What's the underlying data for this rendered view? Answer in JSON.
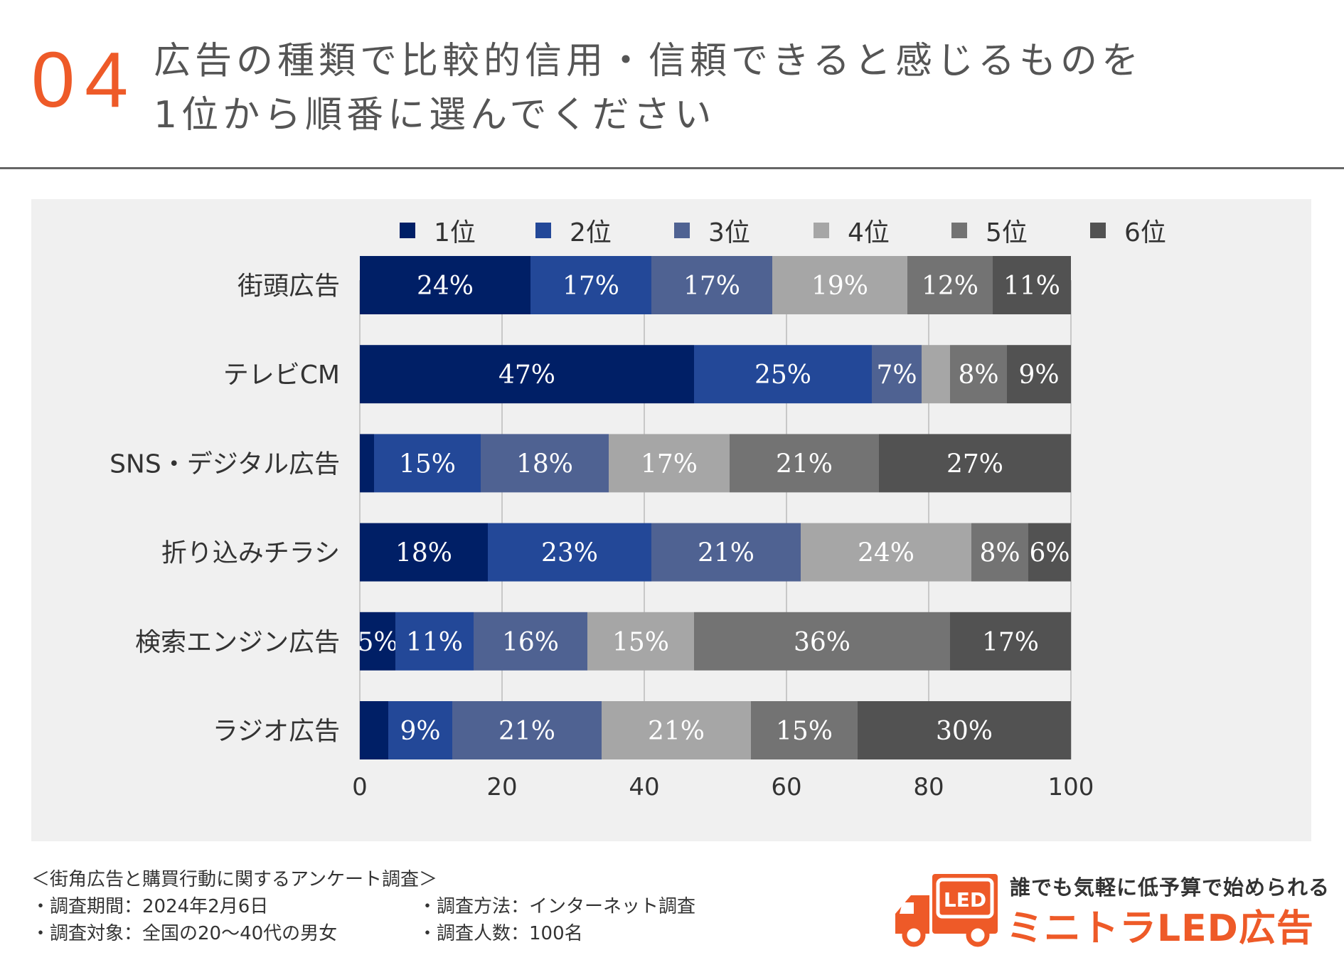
{
  "header": {
    "number": "04",
    "question_line1": "広告の種類で比較的信用・信頼できると感じるものを",
    "question_line2": "1位から順番に選んでください"
  },
  "legend": [
    {
      "label": "1位",
      "color": "#001f66"
    },
    {
      "label": "2位",
      "color": "#234898"
    },
    {
      "label": "3位",
      "color": "#4f6292"
    },
    {
      "label": "4位",
      "color": "#a6a6a6"
    },
    {
      "label": "5位",
      "color": "#737373"
    },
    {
      "label": "6位",
      "color": "#525252"
    }
  ],
  "chart_data": {
    "type": "bar",
    "orientation": "horizontal",
    "stacked": true,
    "categories": [
      "街頭広告",
      "テレビCM",
      "SNS・デジタル広告",
      "折り込みチラシ",
      "検索エンジン広告",
      "ラジオ広告"
    ],
    "series": [
      {
        "name": "1位",
        "values": [
          24,
          47,
          2,
          18,
          5,
          4
        ],
        "labels": [
          "24%",
          "47%",
          "",
          "18%",
          "5%",
          ""
        ]
      },
      {
        "name": "2位",
        "values": [
          17,
          25,
          15,
          23,
          11,
          9
        ],
        "labels": [
          "17%",
          "25%",
          "15%",
          "23%",
          "11%",
          "9%"
        ]
      },
      {
        "name": "3位",
        "values": [
          17,
          7,
          18,
          21,
          16,
          21
        ],
        "labels": [
          "17%",
          "7%",
          "18%",
          "21%",
          "16%",
          "21%"
        ]
      },
      {
        "name": "4位",
        "values": [
          19,
          4,
          17,
          24,
          15,
          21
        ],
        "labels": [
          "19%",
          "",
          "17%",
          "24%",
          "15%",
          "21%"
        ]
      },
      {
        "name": "5位",
        "values": [
          12,
          8,
          21,
          8,
          36,
          15
        ],
        "labels": [
          "12%",
          "8%",
          "21%",
          "8%",
          "36%",
          "15%"
        ]
      },
      {
        "name": "6位",
        "values": [
          11,
          9,
          27,
          6,
          17,
          30
        ],
        "labels": [
          "11%",
          "9%",
          "27%",
          "6%",
          "17%",
          "30%"
        ]
      }
    ],
    "xticks": [
      "0",
      "20",
      "40",
      "60",
      "80",
      "100"
    ],
    "xlim": [
      0,
      100
    ],
    "grid": true,
    "legend_position": "top"
  },
  "footer": {
    "survey_title": "＜街角広告と購買行動に関するアンケート調査＞",
    "period": "・調査期間：2024年2月6日",
    "method": "・調査方法：インターネット調査",
    "target": "・調査対象：全国の20〜40代の男女",
    "count": "・調査人数：100名"
  },
  "logo": {
    "badge": "LED",
    "tagline": "誰でも気軽に低予算で始められる",
    "name": "ミニトラLED広告",
    "color": "#ee5a28"
  }
}
